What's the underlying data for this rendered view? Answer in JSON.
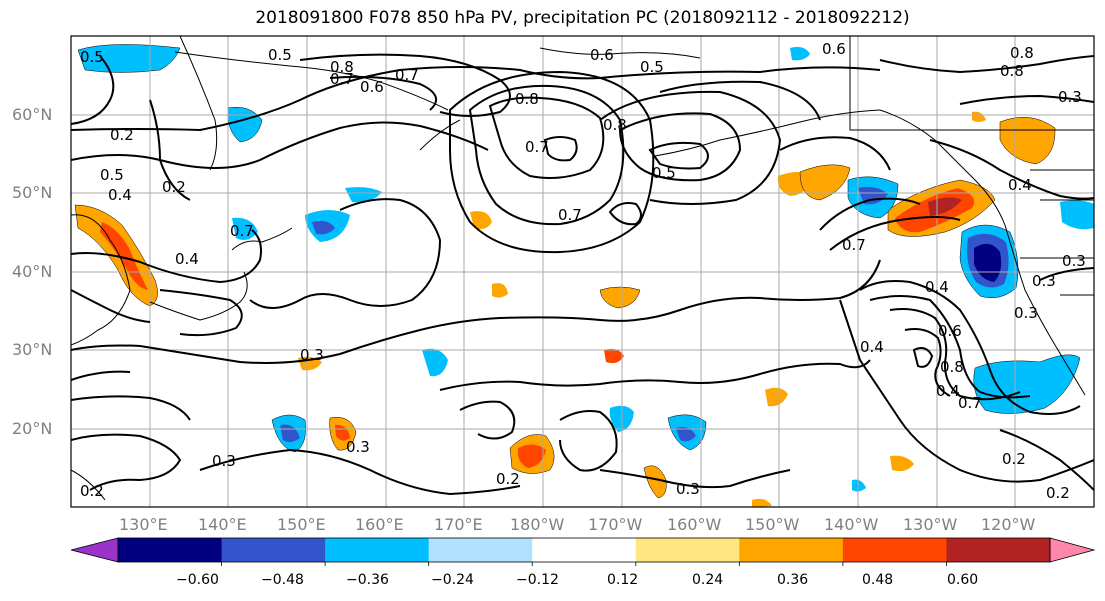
{
  "title": "2018091800 F078 850 hPa PV, precipitation PC (2018092112 - 2018092212)",
  "lat_labels": [
    "60°N",
    "50°N",
    "40°N",
    "30°N",
    "20°N"
  ],
  "lon_labels": [
    "130°E",
    "140°E",
    "150°E",
    "160°E",
    "170°E",
    "180°W",
    "170°W",
    "160°W",
    "150°W",
    "140°W",
    "130°W",
    "120°W"
  ],
  "contour_labels": [
    "0.5",
    "0.8",
    "0.7",
    "0.6",
    "0.5",
    "0.7",
    "0.8",
    "0.8",
    "0.6",
    "0.7",
    "0.5",
    "0.6",
    "0.8",
    "0.8",
    "0.3",
    "0.2",
    "0.5",
    "0.4",
    "0.2",
    "0.4",
    "0.7",
    "0.7",
    "0.5",
    "0.7",
    "0.4",
    "0.3",
    "0.3",
    "0.4",
    "0.4",
    "0.3",
    "0.6",
    "0.4",
    "0.8",
    "0.7",
    "0.3",
    "0.3",
    "0.3",
    "0.2",
    "0.3",
    "0.2",
    "0.2",
    "0.2"
  ],
  "colorbar": {
    "tick_labels": [
      "−0.60",
      "−0.48",
      "−0.36",
      "−0.24",
      "−0.12",
      "0.12",
      "0.24",
      "0.36",
      "0.48",
      "0.60"
    ],
    "colors": [
      "#9933cc",
      "#000080",
      "#3355cc",
      "#00bfff",
      "#b0e2ff",
      "#ffffff",
      "#ffe680",
      "#ffa500",
      "#ff4500",
      "#b22222",
      "#ff88aa"
    ]
  }
}
